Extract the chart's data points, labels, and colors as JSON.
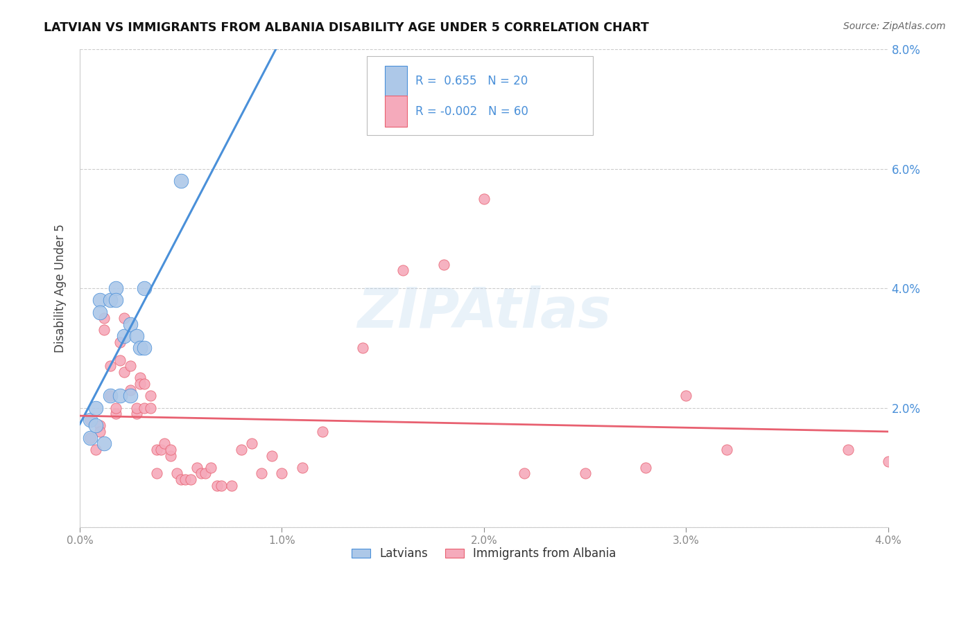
{
  "title": "LATVIAN VS IMMIGRANTS FROM ALBANIA DISABILITY AGE UNDER 5 CORRELATION CHART",
  "source": "Source: ZipAtlas.com",
  "ylabel": "Disability Age Under 5",
  "xlim": [
    0.0,
    0.04
  ],
  "ylim": [
    0.0,
    0.08
  ],
  "xticks": [
    0.0,
    0.01,
    0.02,
    0.03,
    0.04
  ],
  "yticks": [
    0.0,
    0.02,
    0.04,
    0.06,
    0.08
  ],
  "xticklabels": [
    "0.0%",
    "1.0%",
    "2.0%",
    "3.0%",
    "4.0%"
  ],
  "yticklabels_right": [
    "",
    "2.0%",
    "4.0%",
    "6.0%",
    "8.0%"
  ],
  "latvian_R": 0.655,
  "latvian_N": 20,
  "albania_R": -0.002,
  "albania_N": 60,
  "latvian_color": "#adc8e8",
  "albania_color": "#f5aabb",
  "latvian_line_color": "#4a90d9",
  "albania_line_color": "#e86070",
  "grid_color": "#cccccc",
  "bg_color": "#ffffff",
  "watermark": "ZIPAtlas",
  "latvian_x": [
    0.0005,
    0.0005,
    0.0008,
    0.0008,
    0.001,
    0.001,
    0.0012,
    0.0015,
    0.0015,
    0.0018,
    0.0018,
    0.002,
    0.0022,
    0.0025,
    0.0025,
    0.0028,
    0.003,
    0.0032,
    0.0032,
    0.005
  ],
  "latvian_y": [
    0.018,
    0.015,
    0.02,
    0.017,
    0.038,
    0.036,
    0.014,
    0.038,
    0.022,
    0.04,
    0.038,
    0.022,
    0.032,
    0.034,
    0.022,
    0.032,
    0.03,
    0.03,
    0.04,
    0.058
  ],
  "albania_x": [
    0.0005,
    0.0005,
    0.0008,
    0.001,
    0.001,
    0.0012,
    0.0012,
    0.0015,
    0.0015,
    0.0018,
    0.0018,
    0.002,
    0.002,
    0.0022,
    0.0022,
    0.0025,
    0.0025,
    0.0028,
    0.0028,
    0.003,
    0.003,
    0.0032,
    0.0032,
    0.0035,
    0.0035,
    0.0038,
    0.0038,
    0.004,
    0.0042,
    0.0045,
    0.0045,
    0.0048,
    0.005,
    0.0052,
    0.0055,
    0.0058,
    0.006,
    0.0062,
    0.0065,
    0.0068,
    0.007,
    0.0075,
    0.008,
    0.0085,
    0.009,
    0.0095,
    0.01,
    0.011,
    0.012,
    0.014,
    0.016,
    0.018,
    0.02,
    0.022,
    0.025,
    0.028,
    0.03,
    0.032,
    0.038,
    0.04
  ],
  "albania_y": [
    0.018,
    0.015,
    0.013,
    0.017,
    0.016,
    0.033,
    0.035,
    0.027,
    0.022,
    0.019,
    0.02,
    0.031,
    0.028,
    0.026,
    0.035,
    0.027,
    0.023,
    0.019,
    0.02,
    0.025,
    0.024,
    0.024,
    0.02,
    0.022,
    0.02,
    0.009,
    0.013,
    0.013,
    0.014,
    0.012,
    0.013,
    0.009,
    0.008,
    0.008,
    0.008,
    0.01,
    0.009,
    0.009,
    0.01,
    0.007,
    0.007,
    0.007,
    0.013,
    0.014,
    0.009,
    0.012,
    0.009,
    0.01,
    0.016,
    0.03,
    0.043,
    0.044,
    0.055,
    0.009,
    0.009,
    0.01,
    0.022,
    0.013,
    0.013,
    0.011
  ]
}
